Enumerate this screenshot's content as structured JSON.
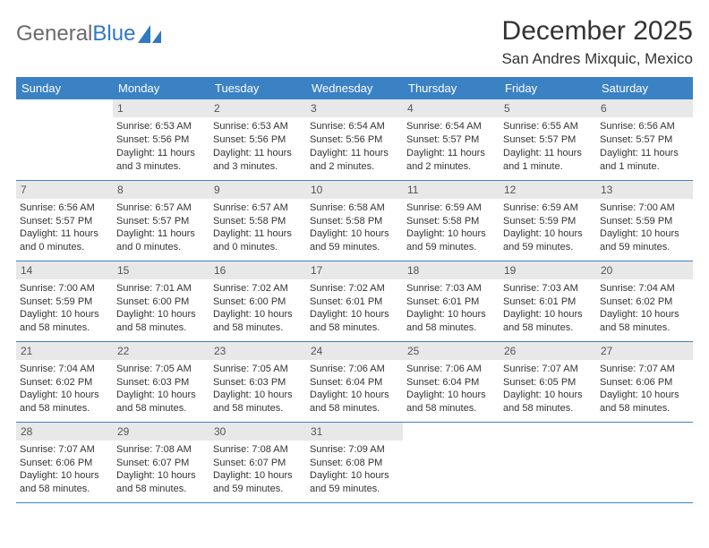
{
  "logo": {
    "text1": "General",
    "text2": "Blue"
  },
  "title": "December 2025",
  "location": "San Andres Mixquic, Mexico",
  "colors": {
    "header_bg": "#3b82c4",
    "header_text": "#ffffff",
    "daynum_bg": "#e8e8e8",
    "border": "#3b82c4",
    "logo_gray": "#6a6a6a",
    "logo_blue": "#2f78c3",
    "text": "#333333",
    "page_bg": "#ffffff"
  },
  "weekdays": [
    "Sunday",
    "Monday",
    "Tuesday",
    "Wednesday",
    "Thursday",
    "Friday",
    "Saturday"
  ],
  "weeks": [
    [
      null,
      {
        "n": "1",
        "sr": "Sunrise: 6:53 AM",
        "ss": "Sunset: 5:56 PM",
        "dl": "Daylight: 11 hours and 3 minutes."
      },
      {
        "n": "2",
        "sr": "Sunrise: 6:53 AM",
        "ss": "Sunset: 5:56 PM",
        "dl": "Daylight: 11 hours and 3 minutes."
      },
      {
        "n": "3",
        "sr": "Sunrise: 6:54 AM",
        "ss": "Sunset: 5:56 PM",
        "dl": "Daylight: 11 hours and 2 minutes."
      },
      {
        "n": "4",
        "sr": "Sunrise: 6:54 AM",
        "ss": "Sunset: 5:57 PM",
        "dl": "Daylight: 11 hours and 2 minutes."
      },
      {
        "n": "5",
        "sr": "Sunrise: 6:55 AM",
        "ss": "Sunset: 5:57 PM",
        "dl": "Daylight: 11 hours and 1 minute."
      },
      {
        "n": "6",
        "sr": "Sunrise: 6:56 AM",
        "ss": "Sunset: 5:57 PM",
        "dl": "Daylight: 11 hours and 1 minute."
      }
    ],
    [
      {
        "n": "7",
        "sr": "Sunrise: 6:56 AM",
        "ss": "Sunset: 5:57 PM",
        "dl": "Daylight: 11 hours and 0 minutes."
      },
      {
        "n": "8",
        "sr": "Sunrise: 6:57 AM",
        "ss": "Sunset: 5:57 PM",
        "dl": "Daylight: 11 hours and 0 minutes."
      },
      {
        "n": "9",
        "sr": "Sunrise: 6:57 AM",
        "ss": "Sunset: 5:58 PM",
        "dl": "Daylight: 11 hours and 0 minutes."
      },
      {
        "n": "10",
        "sr": "Sunrise: 6:58 AM",
        "ss": "Sunset: 5:58 PM",
        "dl": "Daylight: 10 hours and 59 minutes."
      },
      {
        "n": "11",
        "sr": "Sunrise: 6:59 AM",
        "ss": "Sunset: 5:58 PM",
        "dl": "Daylight: 10 hours and 59 minutes."
      },
      {
        "n": "12",
        "sr": "Sunrise: 6:59 AM",
        "ss": "Sunset: 5:59 PM",
        "dl": "Daylight: 10 hours and 59 minutes."
      },
      {
        "n": "13",
        "sr": "Sunrise: 7:00 AM",
        "ss": "Sunset: 5:59 PM",
        "dl": "Daylight: 10 hours and 59 minutes."
      }
    ],
    [
      {
        "n": "14",
        "sr": "Sunrise: 7:00 AM",
        "ss": "Sunset: 5:59 PM",
        "dl": "Daylight: 10 hours and 58 minutes."
      },
      {
        "n": "15",
        "sr": "Sunrise: 7:01 AM",
        "ss": "Sunset: 6:00 PM",
        "dl": "Daylight: 10 hours and 58 minutes."
      },
      {
        "n": "16",
        "sr": "Sunrise: 7:02 AM",
        "ss": "Sunset: 6:00 PM",
        "dl": "Daylight: 10 hours and 58 minutes."
      },
      {
        "n": "17",
        "sr": "Sunrise: 7:02 AM",
        "ss": "Sunset: 6:01 PM",
        "dl": "Daylight: 10 hours and 58 minutes."
      },
      {
        "n": "18",
        "sr": "Sunrise: 7:03 AM",
        "ss": "Sunset: 6:01 PM",
        "dl": "Daylight: 10 hours and 58 minutes."
      },
      {
        "n": "19",
        "sr": "Sunrise: 7:03 AM",
        "ss": "Sunset: 6:01 PM",
        "dl": "Daylight: 10 hours and 58 minutes."
      },
      {
        "n": "20",
        "sr": "Sunrise: 7:04 AM",
        "ss": "Sunset: 6:02 PM",
        "dl": "Daylight: 10 hours and 58 minutes."
      }
    ],
    [
      {
        "n": "21",
        "sr": "Sunrise: 7:04 AM",
        "ss": "Sunset: 6:02 PM",
        "dl": "Daylight: 10 hours and 58 minutes."
      },
      {
        "n": "22",
        "sr": "Sunrise: 7:05 AM",
        "ss": "Sunset: 6:03 PM",
        "dl": "Daylight: 10 hours and 58 minutes."
      },
      {
        "n": "23",
        "sr": "Sunrise: 7:05 AM",
        "ss": "Sunset: 6:03 PM",
        "dl": "Daylight: 10 hours and 58 minutes."
      },
      {
        "n": "24",
        "sr": "Sunrise: 7:06 AM",
        "ss": "Sunset: 6:04 PM",
        "dl": "Daylight: 10 hours and 58 minutes."
      },
      {
        "n": "25",
        "sr": "Sunrise: 7:06 AM",
        "ss": "Sunset: 6:04 PM",
        "dl": "Daylight: 10 hours and 58 minutes."
      },
      {
        "n": "26",
        "sr": "Sunrise: 7:07 AM",
        "ss": "Sunset: 6:05 PM",
        "dl": "Daylight: 10 hours and 58 minutes."
      },
      {
        "n": "27",
        "sr": "Sunrise: 7:07 AM",
        "ss": "Sunset: 6:06 PM",
        "dl": "Daylight: 10 hours and 58 minutes."
      }
    ],
    [
      {
        "n": "28",
        "sr": "Sunrise: 7:07 AM",
        "ss": "Sunset: 6:06 PM",
        "dl": "Daylight: 10 hours and 58 minutes."
      },
      {
        "n": "29",
        "sr": "Sunrise: 7:08 AM",
        "ss": "Sunset: 6:07 PM",
        "dl": "Daylight: 10 hours and 58 minutes."
      },
      {
        "n": "30",
        "sr": "Sunrise: 7:08 AM",
        "ss": "Sunset: 6:07 PM",
        "dl": "Daylight: 10 hours and 59 minutes."
      },
      {
        "n": "31",
        "sr": "Sunrise: 7:09 AM",
        "ss": "Sunset: 6:08 PM",
        "dl": "Daylight: 10 hours and 59 minutes."
      },
      null,
      null,
      null
    ]
  ]
}
